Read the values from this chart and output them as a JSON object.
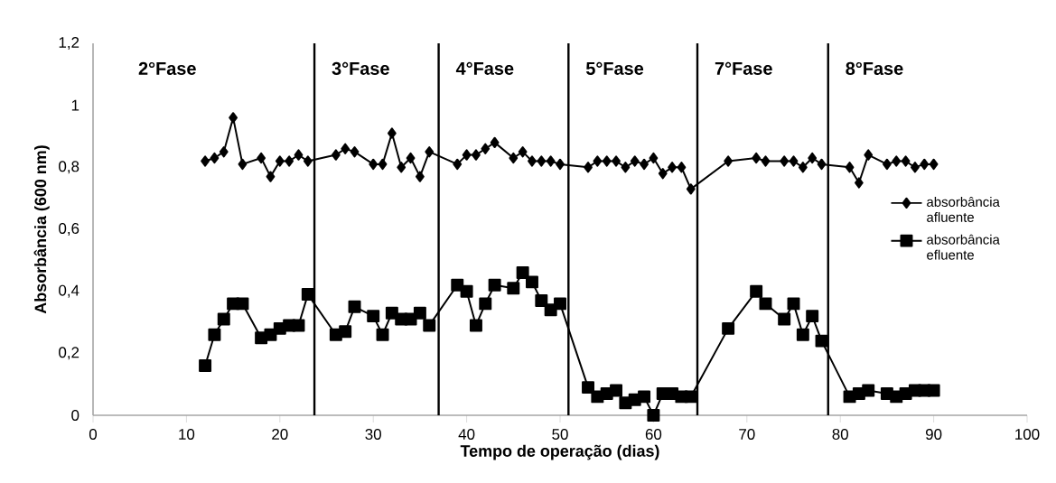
{
  "chart_data": {
    "type": "line",
    "xlabel": "Tempo de operação (dias)",
    "ylabel": "Absorbância (600 nm)",
    "xlim": [
      0,
      100
    ],
    "xticks": [
      0,
      10,
      20,
      30,
      40,
      50,
      60,
      70,
      80,
      90,
      100
    ],
    "ylim": [
      0,
      1.2
    ],
    "yticks": [
      0,
      {
        "value": 0.2,
        "label": "0,2"
      },
      {
        "value": 0.4,
        "label": "0,4"
      },
      {
        "value": 0.6,
        "label": "0,6"
      },
      {
        "value": 0.8,
        "label": "0,8"
      },
      1,
      {
        "value": 1.2,
        "label": "1,2"
      }
    ],
    "grid": false,
    "legend": "right",
    "line_style": "solid",
    "series": [
      {
        "name": "absorbância afluente",
        "color": "#000000",
        "marker": "diamond",
        "x": [
          12,
          13,
          14,
          15,
          16,
          18,
          19,
          20,
          21,
          22,
          23,
          26,
          27,
          28,
          30,
          31,
          32,
          33,
          34,
          35,
          36,
          39,
          40,
          41,
          42,
          43,
          45,
          46,
          47,
          48,
          49,
          50,
          53,
          54,
          55,
          56,
          57,
          58,
          59,
          60,
          61,
          62,
          63,
          64,
          68,
          71,
          72,
          74,
          75,
          76,
          77,
          78,
          81,
          82,
          83,
          85,
          86,
          87,
          88,
          89,
          90
        ],
        "values": [
          0.82,
          0.83,
          0.85,
          0.96,
          0.81,
          0.83,
          0.77,
          0.82,
          0.82,
          0.84,
          0.82,
          0.84,
          0.86,
          0.85,
          0.81,
          0.81,
          0.91,
          0.8,
          0.83,
          0.77,
          0.85,
          0.81,
          0.84,
          0.84,
          0.86,
          0.88,
          0.83,
          0.85,
          0.82,
          0.82,
          0.82,
          0.81,
          0.8,
          0.82,
          0.82,
          0.82,
          0.8,
          0.82,
          0.81,
          0.83,
          0.78,
          0.8,
          0.8,
          0.73,
          0.82,
          0.83,
          0.82,
          0.82,
          0.82,
          0.8,
          0.83,
          0.81,
          0.8,
          0.75,
          0.84,
          0.81,
          0.82,
          0.82,
          0.8,
          0.81,
          0.81
        ]
      },
      {
        "name": "absorbância efluente",
        "color": "#000000",
        "marker": "square",
        "x": [
          12,
          13,
          14,
          15,
          16,
          18,
          19,
          20,
          21,
          22,
          23,
          26,
          27,
          28,
          30,
          31,
          32,
          33,
          34,
          35,
          36,
          39,
          40,
          41,
          42,
          43,
          45,
          46,
          47,
          48,
          49,
          50,
          53,
          54,
          55,
          56,
          57,
          58,
          59,
          60,
          61,
          62,
          63,
          64,
          68,
          71,
          72,
          74,
          75,
          76,
          77,
          78,
          81,
          82,
          83,
          85,
          86,
          87,
          88,
          89,
          90
        ],
        "values": [
          0.16,
          0.26,
          0.31,
          0.36,
          0.36,
          0.25,
          0.26,
          0.28,
          0.29,
          0.29,
          0.39,
          0.26,
          0.27,
          0.35,
          0.32,
          0.26,
          0.33,
          0.31,
          0.31,
          0.33,
          0.29,
          0.42,
          0.4,
          0.29,
          0.36,
          0.42,
          0.41,
          0.46,
          0.43,
          0.37,
          0.34,
          0.36,
          0.09,
          0.06,
          0.07,
          0.08,
          0.04,
          0.05,
          0.06,
          0.0,
          0.07,
          0.07,
          0.06,
          0.06,
          0.28,
          0.4,
          0.36,
          0.31,
          0.36,
          0.26,
          0.32,
          0.24,
          0.06,
          0.07,
          0.08,
          0.07,
          0.06,
          0.07,
          0.08,
          0.08,
          0.08
        ]
      }
    ],
    "ref_lines": [
      {
        "axis": "x",
        "value": 23.7,
        "color": "#000000"
      },
      {
        "axis": "x",
        "value": 37,
        "color": "#000000"
      },
      {
        "axis": "x",
        "value": 50.9,
        "color": "#000000"
      },
      {
        "axis": "x",
        "value": 64.7,
        "color": "#000000"
      },
      {
        "axis": "x",
        "value": 78.7,
        "color": "#000000"
      }
    ],
    "annotations": [
      "2°Fase",
      "3°Fase",
      "4°Fase",
      "5°Fase",
      "7°Fase",
      "8°Fase"
    ]
  }
}
